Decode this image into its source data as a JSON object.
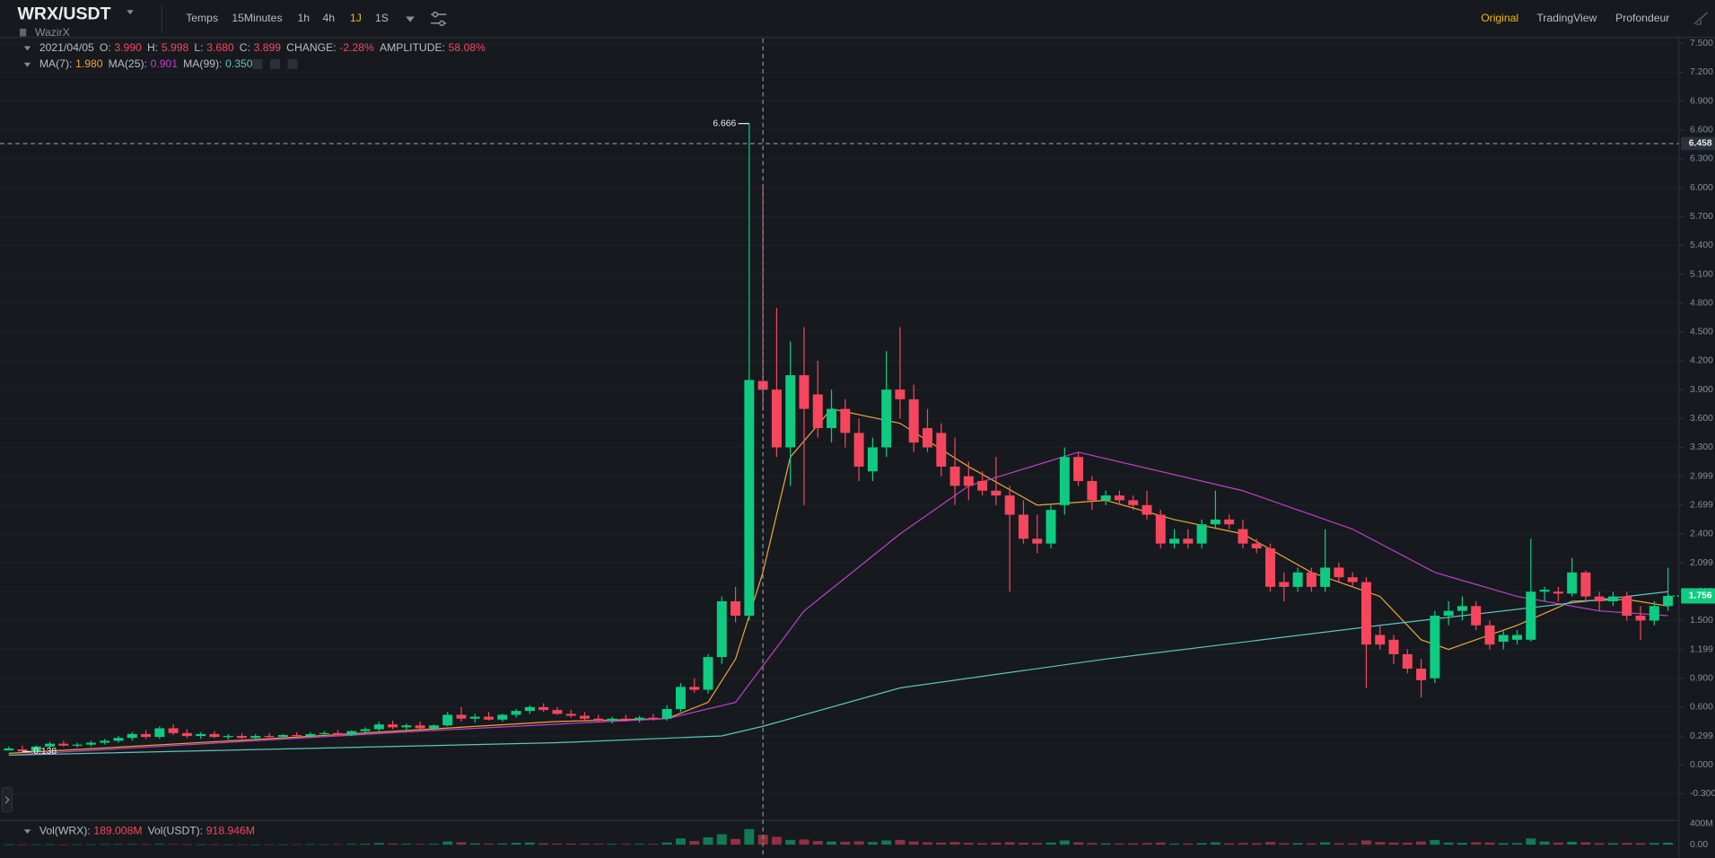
{
  "header": {
    "pair": "WRX/USDT",
    "exchange": "WazirX"
  },
  "toolbar": {
    "intervals": [
      "Temps",
      "15Minutes",
      "1h",
      "4h",
      "1J",
      "1S"
    ],
    "active": 4,
    "views": [
      "Original",
      "TradingView",
      "Profondeur"
    ],
    "active_view": 0
  },
  "legend": {
    "date": "2021/04/05",
    "ohlc": [
      [
        "O:",
        "3.990"
      ],
      [
        "H:",
        "5.998"
      ],
      [
        "L:",
        "3.680"
      ],
      [
        "C:",
        "3.899"
      ],
      [
        "CHANGE:",
        "-2.28%"
      ],
      [
        "AMPLITUDE:",
        "58.08%"
      ]
    ],
    "ma": [
      [
        "MA(7):",
        "1.980"
      ],
      [
        "MA(25):",
        "0.901"
      ],
      [
        "MA(99):",
        "0.350"
      ]
    ],
    "volume": [
      [
        "Vol(WRX):",
        "189.008M"
      ],
      [
        "Vol(USDT):",
        "918.946M"
      ]
    ]
  },
  "chart_data": {
    "type": "candlestick",
    "up_color": "#0ecb81",
    "down_color": "#f6465d",
    "ylim": [
      -0.5,
      7.55
    ],
    "yticks": [
      {
        "value": 7.5,
        "label": "7.500"
      },
      {
        "value": 7.2,
        "label": "7.200"
      },
      {
        "value": 6.9,
        "label": "6.900"
      },
      {
        "value": 6.6,
        "label": "6.600"
      },
      {
        "value": 6.3,
        "label": "6.300"
      },
      {
        "value": 6,
        "label": "6.000"
      },
      {
        "value": 5.7,
        "label": "5.700"
      },
      {
        "value": 5.4,
        "label": "5.400"
      },
      {
        "value": 5.1,
        "label": "5.100"
      },
      {
        "value": 4.8,
        "label": "4.800"
      },
      {
        "value": 4.5,
        "label": "4.500"
      },
      {
        "value": 4.2,
        "label": "4.200"
      },
      {
        "value": 3.9,
        "label": "3.900"
      },
      {
        "value": 3.6,
        "label": "3.600"
      },
      {
        "value": 3.3,
        "label": "3.300"
      },
      2.999,
      2.699,
      {
        "value": 2.4,
        "label": "2.400"
      },
      2.099,
      {
        "value": 1.8,
        "label": "1.800"
      },
      {
        "value": 1.5,
        "label": "1.500"
      },
      1.199,
      {
        "value": 0.9,
        "label": "0.900"
      },
      {
        "value": 0.6,
        "label": "0.600"
      },
      0.299,
      {
        "value": 0,
        "label": "0.000"
      },
      {
        "value": -0.3,
        "label": "-0.300"
      }
    ],
    "grid": true,
    "candles": [
      [
        0.15,
        0.19,
        0.15,
        0.17
      ],
      [
        0.16,
        0.2,
        0.138,
        0.14
      ],
      [
        0.14,
        0.2,
        0.14,
        0.19
      ],
      [
        0.19,
        0.24,
        0.17,
        0.22
      ],
      [
        0.22,
        0.25,
        0.19,
        0.2
      ],
      [
        0.2,
        0.23,
        0.18,
        0.21
      ],
      [
        0.21,
        0.25,
        0.19,
        0.23
      ],
      [
        0.23,
        0.27,
        0.21,
        0.25
      ],
      [
        0.25,
        0.3,
        0.23,
        0.28
      ],
      [
        0.28,
        0.34,
        0.25,
        0.32
      ],
      [
        0.32,
        0.36,
        0.27,
        0.29
      ],
      [
        0.29,
        0.4,
        0.27,
        0.38
      ],
      [
        0.38,
        0.42,
        0.31,
        0.33
      ],
      [
        0.33,
        0.37,
        0.28,
        0.3
      ],
      [
        0.3,
        0.34,
        0.27,
        0.32
      ],
      [
        0.32,
        0.35,
        0.28,
        0.29
      ],
      [
        0.29,
        0.32,
        0.26,
        0.3
      ],
      [
        0.3,
        0.33,
        0.27,
        0.28
      ],
      [
        0.28,
        0.32,
        0.26,
        0.3
      ],
      [
        0.3,
        0.33,
        0.27,
        0.29
      ],
      [
        0.29,
        0.32,
        0.27,
        0.31
      ],
      [
        0.31,
        0.34,
        0.28,
        0.3
      ],
      [
        0.3,
        0.34,
        0.28,
        0.32
      ],
      [
        0.32,
        0.35,
        0.3,
        0.33
      ],
      [
        0.33,
        0.36,
        0.3,
        0.31
      ],
      [
        0.31,
        0.36,
        0.3,
        0.35
      ],
      [
        0.35,
        0.39,
        0.32,
        0.37
      ],
      [
        0.37,
        0.45,
        0.35,
        0.42
      ],
      [
        0.42,
        0.46,
        0.37,
        0.39
      ],
      [
        0.39,
        0.43,
        0.36,
        0.41
      ],
      [
        0.41,
        0.45,
        0.37,
        0.38
      ],
      [
        0.38,
        0.42,
        0.35,
        0.41
      ],
      [
        0.41,
        0.55,
        0.4,
        0.52
      ],
      [
        0.52,
        0.6,
        0.45,
        0.48
      ],
      [
        0.48,
        0.53,
        0.44,
        0.5
      ],
      [
        0.5,
        0.55,
        0.46,
        0.47
      ],
      [
        0.47,
        0.53,
        0.45,
        0.52
      ],
      [
        0.52,
        0.58,
        0.49,
        0.56
      ],
      [
        0.56,
        0.62,
        0.53,
        0.6
      ],
      [
        0.6,
        0.64,
        0.55,
        0.57
      ],
      [
        0.57,
        0.6,
        0.52,
        0.53
      ],
      [
        0.53,
        0.57,
        0.49,
        0.51
      ],
      [
        0.51,
        0.55,
        0.46,
        0.48
      ],
      [
        0.48,
        0.52,
        0.44,
        0.46
      ],
      [
        0.46,
        0.5,
        0.43,
        0.48
      ],
      [
        0.48,
        0.52,
        0.45,
        0.47
      ],
      [
        0.47,
        0.51,
        0.44,
        0.49
      ],
      [
        0.49,
        0.53,
        0.46,
        0.48
      ],
      [
        0.48,
        0.62,
        0.46,
        0.58
      ],
      [
        0.58,
        0.85,
        0.55,
        0.81
      ],
      [
        0.81,
        0.9,
        0.75,
        0.78
      ],
      [
        0.78,
        1.15,
        0.74,
        1.12
      ],
      [
        1.12,
        1.75,
        1.05,
        1.7
      ],
      [
        1.7,
        1.85,
        1.48,
        1.55
      ],
      [
        1.55,
        6.666,
        1.5,
        4.0
      ],
      [
        3.99,
        5.998,
        3.68,
        3.899
      ],
      [
        3.9,
        4.75,
        3.2,
        3.3
      ],
      [
        3.3,
        4.4,
        2.9,
        4.05
      ],
      [
        4.05,
        4.55,
        2.7,
        3.7
      ],
      [
        3.85,
        4.2,
        3.4,
        3.5
      ],
      [
        3.5,
        3.9,
        3.35,
        3.7
      ],
      [
        3.7,
        3.8,
        3.3,
        3.45
      ],
      [
        3.45,
        3.6,
        2.95,
        3.1
      ],
      [
        3.05,
        3.4,
        2.95,
        3.3
      ],
      [
        3.3,
        4.3,
        3.2,
        3.9
      ],
      [
        3.9,
        4.55,
        3.6,
        3.8
      ],
      [
        3.8,
        3.95,
        3.25,
        3.35
      ],
      [
        3.5,
        3.7,
        3.25,
        3.3
      ],
      [
        3.45,
        3.55,
        3.0,
        3.1
      ],
      [
        3.1,
        3.4,
        2.7,
        2.9
      ],
      [
        3.0,
        3.15,
        2.75,
        2.9
      ],
      [
        2.95,
        3.05,
        2.8,
        2.85
      ],
      [
        2.85,
        3.2,
        2.7,
        2.8
      ],
      [
        2.8,
        2.9,
        1.8,
        2.6
      ],
      [
        2.6,
        2.75,
        2.3,
        2.35
      ],
      [
        2.35,
        2.6,
        2.2,
        2.3
      ],
      [
        2.3,
        2.7,
        2.25,
        2.65
      ],
      [
        2.7,
        3.3,
        2.6,
        3.2
      ],
      [
        3.2,
        3.25,
        2.9,
        2.95
      ],
      [
        2.95,
        3.0,
        2.65,
        2.75
      ],
      [
        2.75,
        2.85,
        2.7,
        2.8
      ],
      [
        2.8,
        2.85,
        2.7,
        2.75
      ],
      [
        2.75,
        2.8,
        2.65,
        2.7
      ],
      [
        2.7,
        2.85,
        2.55,
        2.6
      ],
      [
        2.6,
        2.65,
        2.25,
        2.3
      ],
      [
        2.3,
        2.45,
        2.25,
        2.35
      ],
      [
        2.35,
        2.45,
        2.25,
        2.3
      ],
      [
        2.3,
        2.55,
        2.25,
        2.5
      ],
      [
        2.5,
        2.85,
        2.45,
        2.55
      ],
      [
        2.55,
        2.6,
        2.45,
        2.5
      ],
      [
        2.45,
        2.55,
        2.25,
        2.3
      ],
      [
        2.3,
        2.35,
        2.2,
        2.25
      ],
      [
        2.25,
        2.3,
        1.8,
        1.85
      ],
      [
        1.9,
        2.0,
        1.7,
        1.85
      ],
      [
        1.85,
        2.05,
        1.8,
        2.0
      ],
      [
        2.0,
        2.05,
        1.8,
        1.85
      ],
      [
        1.85,
        2.45,
        1.8,
        2.05
      ],
      [
        2.05,
        2.1,
        1.9,
        1.95
      ],
      [
        1.95,
        2.0,
        1.85,
        1.9
      ],
      [
        1.9,
        1.95,
        0.8,
        1.25
      ],
      [
        1.35,
        1.45,
        1.2,
        1.25
      ],
      [
        1.3,
        1.35,
        1.05,
        1.15
      ],
      [
        1.15,
        1.2,
        0.95,
        1.0
      ],
      [
        1.0,
        1.1,
        0.7,
        0.88
      ],
      [
        0.9,
        1.6,
        0.85,
        1.55
      ],
      [
        1.55,
        1.7,
        1.45,
        1.6
      ],
      [
        1.6,
        1.75,
        1.5,
        1.65
      ],
      [
        1.65,
        1.7,
        1.4,
        1.45
      ],
      [
        1.45,
        1.5,
        1.2,
        1.25
      ],
      [
        1.28,
        1.4,
        1.2,
        1.35
      ],
      [
        1.3,
        1.4,
        1.25,
        1.35
      ],
      [
        1.3,
        2.35,
        1.28,
        1.8
      ],
      [
        1.8,
        1.85,
        1.7,
        1.82
      ],
      [
        1.8,
        1.85,
        1.7,
        1.78
      ],
      [
        1.78,
        2.15,
        1.75,
        2.0
      ],
      [
        2.0,
        2.02,
        1.7,
        1.75
      ],
      [
        1.75,
        1.8,
        1.6,
        1.7
      ],
      [
        1.7,
        1.8,
        1.65,
        1.75
      ],
      [
        1.75,
        1.8,
        1.5,
        1.55
      ],
      [
        1.55,
        1.65,
        1.3,
        1.5
      ],
      [
        1.5,
        1.7,
        1.45,
        1.65
      ],
      [
        1.65,
        2.05,
        1.6,
        1.756
      ]
    ],
    "ma": [
      {
        "color": "#f0a33a",
        "x": [
          0,
          20,
          40,
          48,
          51,
          53,
          55,
          57,
          60,
          65,
          70,
          75,
          80,
          85,
          90,
          95,
          100,
          103,
          105,
          110,
          114,
          118,
          121
        ],
        "values": [
          0.12,
          0.28,
          0.45,
          0.48,
          0.65,
          1.1,
          2.0,
          3.2,
          3.7,
          3.55,
          3.1,
          2.7,
          2.75,
          2.55,
          2.4,
          2.0,
          1.75,
          1.3,
          1.2,
          1.45,
          1.7,
          1.72,
          1.65
        ]
      },
      {
        "color": "#c13ec9",
        "x": [
          0,
          30,
          48,
          53,
          58,
          65,
          70,
          78,
          90,
          98,
          104,
          110,
          116,
          121
        ],
        "values": [
          0.1,
          0.35,
          0.48,
          0.65,
          1.6,
          2.4,
          2.9,
          3.25,
          2.85,
          2.45,
          2.0,
          1.75,
          1.6,
          1.55
        ]
      },
      {
        "color": "#5fc4c0",
        "x": [
          0,
          40,
          52,
          55,
          65,
          80,
          100,
          112,
          121
        ],
        "values": [
          0.1,
          0.23,
          0.3,
          0.4,
          0.8,
          1.1,
          1.45,
          1.65,
          1.8
        ]
      }
    ],
    "crosshair": {
      "x": 55,
      "value": 6.458
    },
    "volume": {
      "ylim": [
        0,
        420
      ],
      "yticks": [
        {
          "value": 0,
          "label": "0.00"
        },
        {
          "value": 400,
          "label": "400M"
        }
      ],
      "values": [
        6,
        5,
        7,
        6,
        5,
        6,
        7,
        8,
        9,
        12,
        8,
        14,
        10,
        7,
        6,
        6,
        5,
        6,
        5,
        6,
        6,
        7,
        8,
        7,
        9,
        14,
        16,
        30,
        20,
        15,
        14,
        16,
        60,
        45,
        25,
        20,
        22,
        35,
        40,
        26,
        22,
        20,
        18,
        16,
        15,
        14,
        16,
        15,
        40,
        120,
        70,
        140,
        200,
        110,
        300,
        189.008,
        150,
        90,
        100,
        70,
        60,
        55,
        65,
        50,
        80,
        90,
        60,
        45,
        40,
        50,
        35,
        30,
        38,
        45,
        35,
        30,
        40,
        80,
        45,
        30,
        25,
        22,
        25,
        30,
        40,
        20,
        22,
        30,
        45,
        25,
        30,
        28,
        50,
        28,
        30,
        26,
        45,
        28,
        25,
        80,
        50,
        40,
        38,
        60,
        90,
        40,
        35,
        45,
        40,
        30,
        30,
        120,
        60,
        40,
        55,
        45,
        30,
        28,
        35,
        30,
        32,
        38
      ]
    }
  }
}
